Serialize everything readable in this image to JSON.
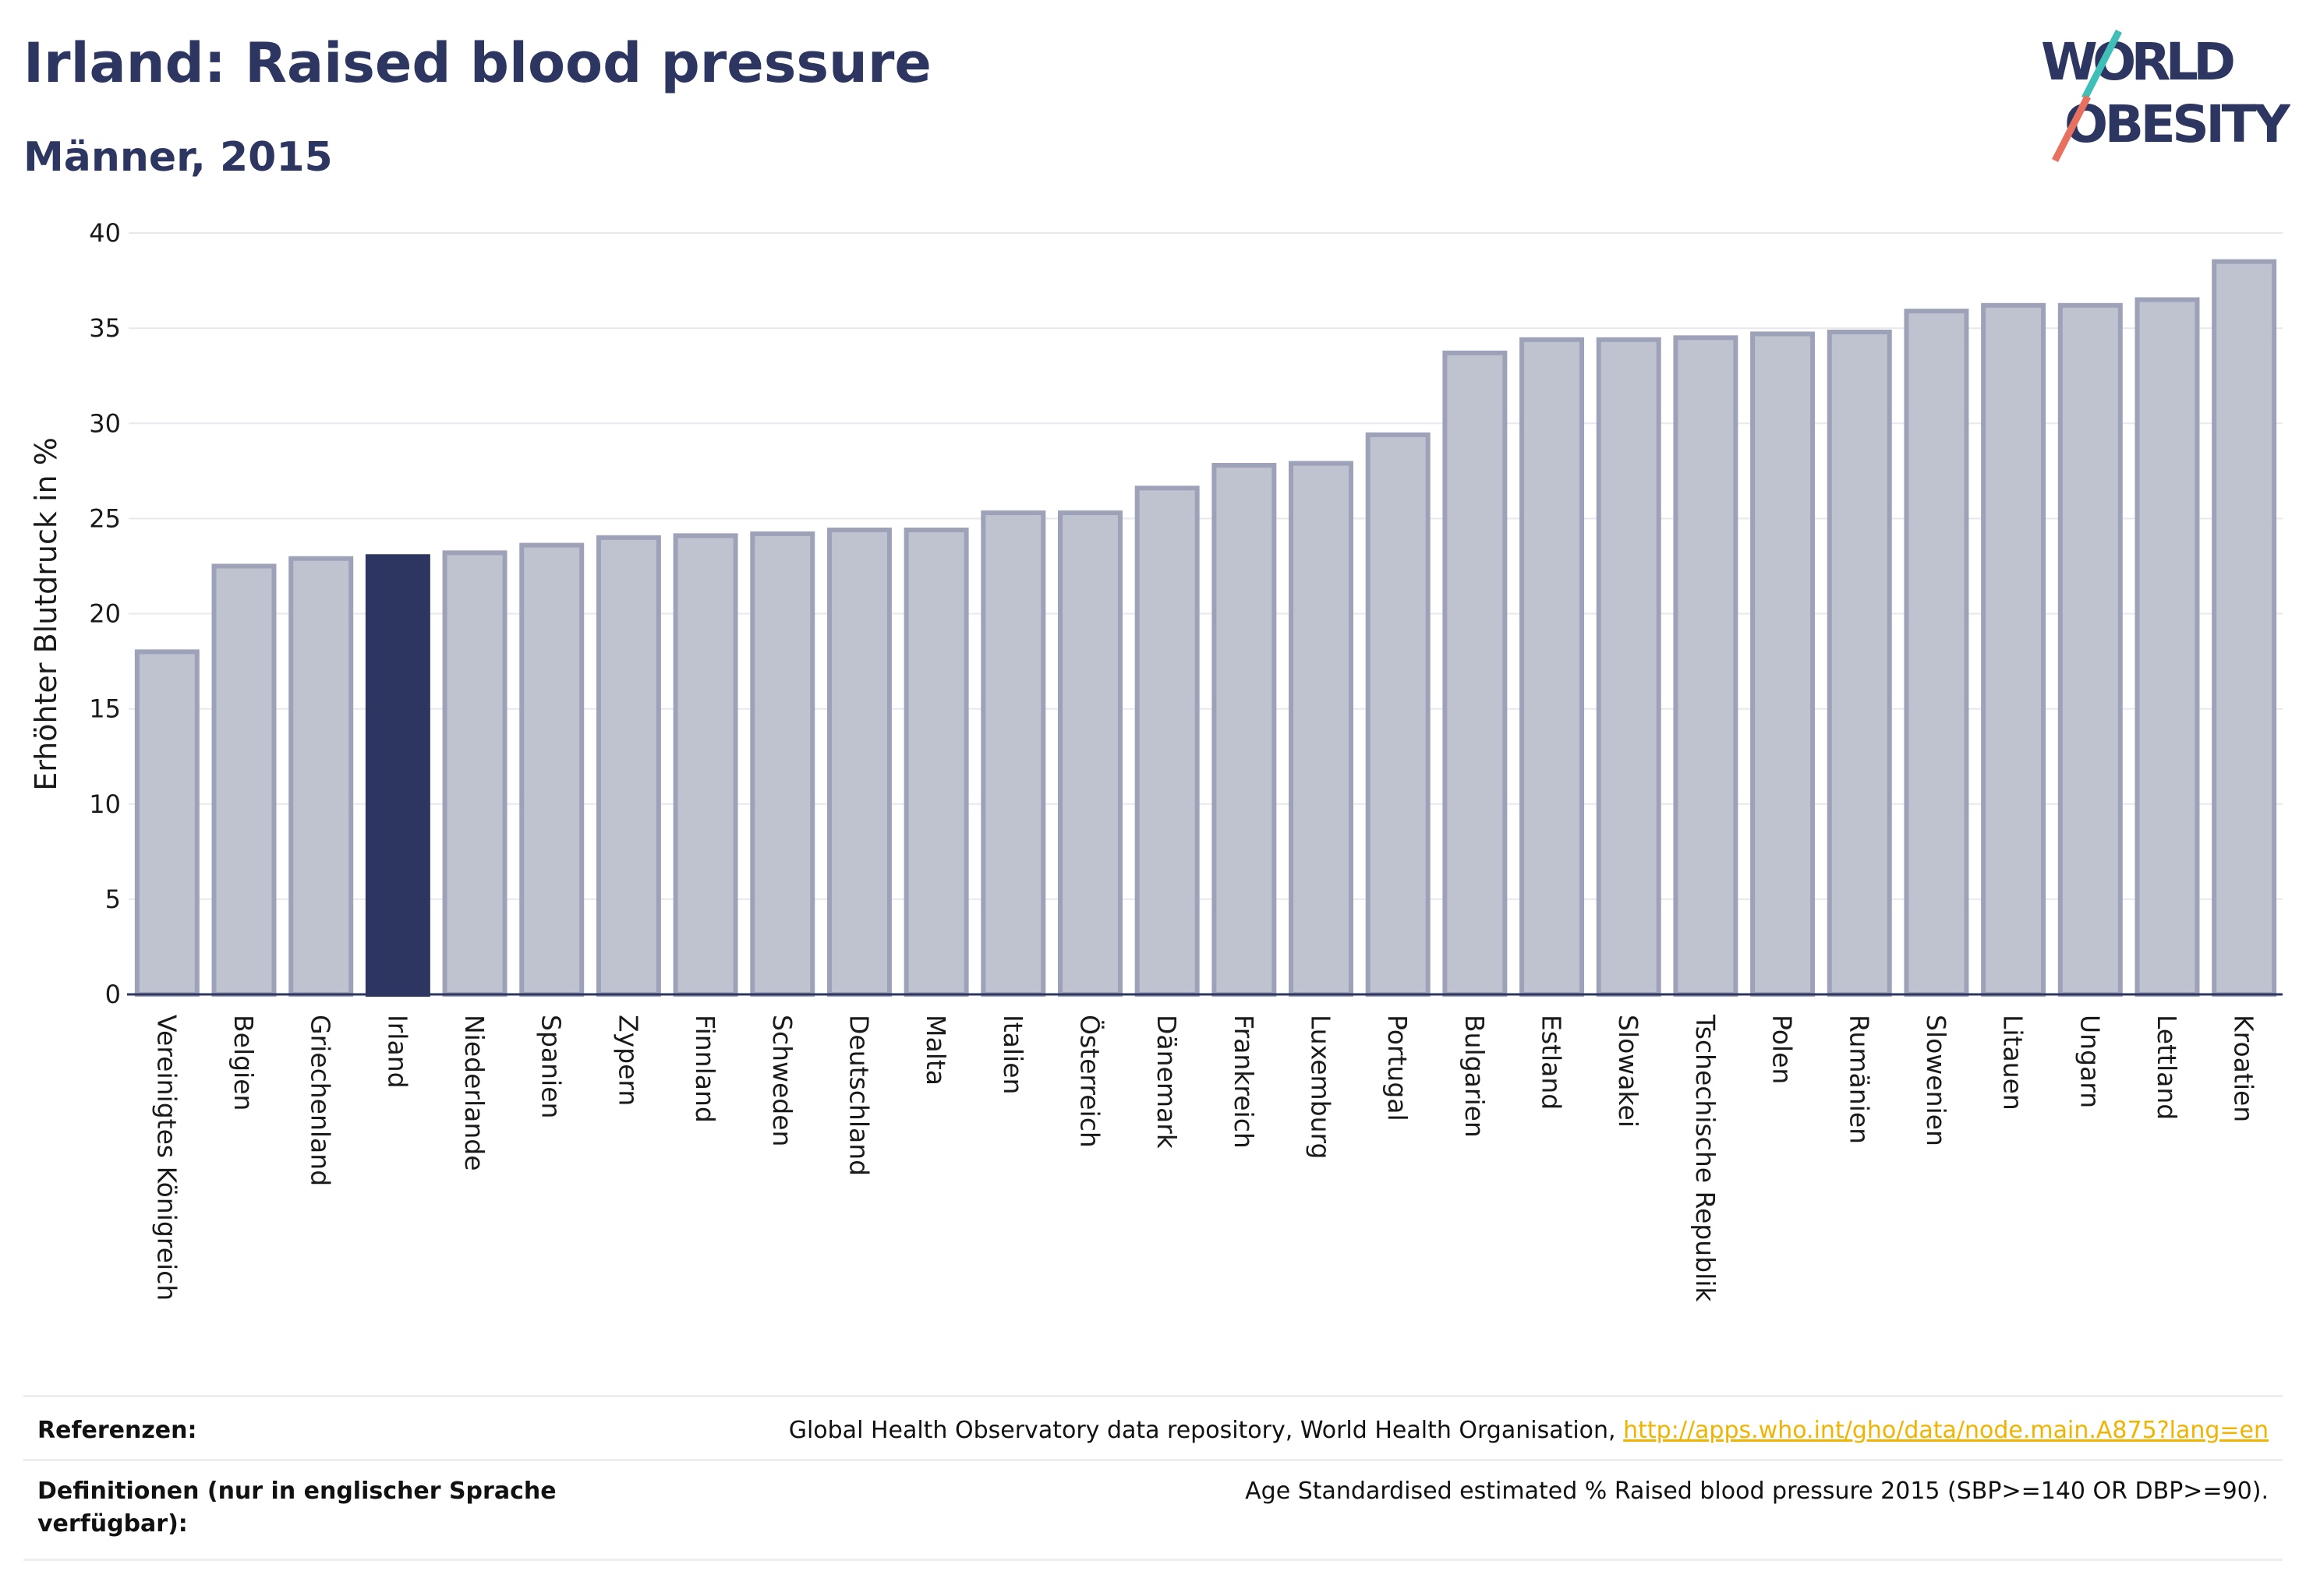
{
  "title": "Irland: Raised blood pressure",
  "subtitle": "Männer, 2015",
  "logo": {
    "line1": "WORLD",
    "line2": "OBESITY"
  },
  "colors": {
    "bar": "#bfc2cf",
    "bar_border": "#9da2b8",
    "highlight": "#2d3660",
    "grid": "#e8e8ee",
    "accent_teal": "#3fbfb7",
    "accent_coral": "#e8705f"
  },
  "chart_data": {
    "type": "bar",
    "ylabel": "Erhöhter Blutdruck in %",
    "ylim": [
      0,
      40
    ],
    "yticks": [
      0,
      5,
      10,
      15,
      20,
      25,
      30,
      35,
      40
    ],
    "highlight": "Irland",
    "categories": [
      "Vereinigtes Königreich",
      "Belgien",
      "Griechenland",
      "Irland",
      "Niederlande",
      "Spanien",
      "Zypern",
      "Finnland",
      "Schweden",
      "Deutschland",
      "Malta",
      "Italien",
      "Österreich",
      "Dänemark",
      "Frankreich",
      "Luxemburg",
      "Portugal",
      "Bulgarien",
      "Estland",
      "Slowakei",
      "Tschechische Republik",
      "Polen",
      "Rumänien",
      "Slowenien",
      "Litauen",
      "Ungarn",
      "Lettland",
      "Kroatien"
    ],
    "values": [
      18.0,
      22.5,
      22.9,
      23.0,
      23.2,
      23.6,
      24.0,
      24.1,
      24.2,
      24.4,
      24.4,
      25.3,
      25.3,
      26.6,
      27.8,
      27.9,
      29.4,
      33.7,
      34.4,
      34.4,
      34.5,
      34.7,
      34.8,
      35.9,
      36.2,
      36.2,
      36.5,
      38.5
    ]
  },
  "references": {
    "ref_label": "Referenzen:",
    "ref_text": "Global Health Observatory data repository, World Health Organisation,",
    "ref_link": "http://apps.who.int/gho/data/node.main.A875?lang=en",
    "def_label": "Definitionen (nur in englischer Sprache verfügbar):",
    "def_text": "Age Standardised estimated % Raised blood pressure 2015 (SBP>=140 OR DBP>=90)."
  }
}
